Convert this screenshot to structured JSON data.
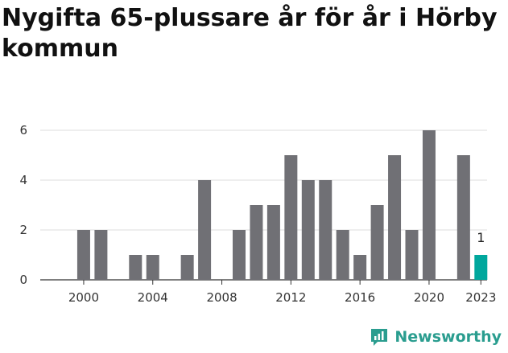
{
  "title": "Nygifta 65-plussare år för år i Hörby kommun",
  "brand": {
    "name": "Newsworthy",
    "icon": "newsworthy-logo-icon",
    "color": "#2a9d8f"
  },
  "colors": {
    "bar": "#707075",
    "highlight": "#00a79d",
    "grid": "#dddddd",
    "axis": "#333333"
  },
  "chart_data": {
    "type": "bar",
    "title": "Nygifta 65-plussare år för år i Hörby kommun",
    "xlabel": "",
    "ylabel": "",
    "categories": [
      "1999",
      "2000",
      "2001",
      "2002",
      "2003",
      "2004",
      "2005",
      "2006",
      "2007",
      "2008",
      "2009",
      "2010",
      "2011",
      "2012",
      "2013",
      "2014",
      "2015",
      "2016",
      "2017",
      "2018",
      "2019",
      "2020",
      "2021",
      "2022",
      "2023"
    ],
    "values": [
      0,
      2,
      2,
      0,
      1,
      1,
      0,
      1,
      4,
      0,
      2,
      3,
      3,
      5,
      4,
      4,
      2,
      1,
      3,
      5,
      2,
      6,
      0,
      5,
      1
    ],
    "highlight_index": 24,
    "highlight_label": "1",
    "x_ticks": [
      "2000",
      "2004",
      "2008",
      "2012",
      "2016",
      "2020",
      "2023"
    ],
    "y_ticks": [
      "0",
      "2",
      "4",
      "6"
    ],
    "ylim": [
      0,
      6
    ],
    "grid": true,
    "legend": "none"
  }
}
